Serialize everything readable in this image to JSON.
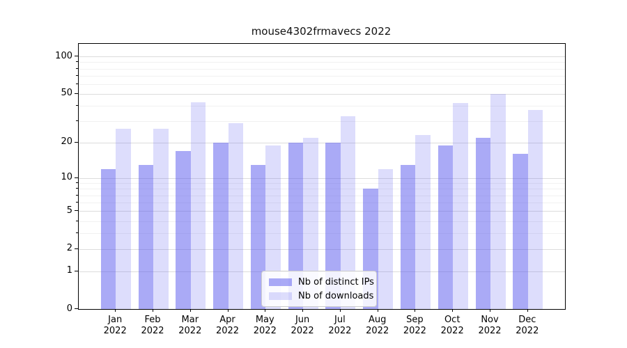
{
  "title": "mouse4302frmavecs 2022",
  "chart_data": {
    "type": "bar",
    "title": "mouse4302frmavecs 2022",
    "categories": [
      {
        "month": "Jan",
        "year": "2022"
      },
      {
        "month": "Feb",
        "year": "2022"
      },
      {
        "month": "Mar",
        "year": "2022"
      },
      {
        "month": "Apr",
        "year": "2022"
      },
      {
        "month": "May",
        "year": "2022"
      },
      {
        "month": "Jun",
        "year": "2022"
      },
      {
        "month": "Jul",
        "year": "2022"
      },
      {
        "month": "Aug",
        "year": "2022"
      },
      {
        "month": "Sep",
        "year": "2022"
      },
      {
        "month": "Oct",
        "year": "2022"
      },
      {
        "month": "Nov",
        "year": "2022"
      },
      {
        "month": "Dec",
        "year": "2022"
      }
    ],
    "series": [
      {
        "name": "Nb of distinct IPs",
        "color": "rgba(85,85,238,0.5)",
        "values": [
          12,
          13,
          17,
          20,
          13,
          20,
          20,
          8,
          13,
          19,
          22,
          16
        ]
      },
      {
        "name": "Nb of downloads",
        "color": "rgba(85,85,238,0.2)",
        "values": [
          26,
          26,
          43,
          29,
          19,
          22,
          33,
          12,
          23,
          42,
          50,
          37
        ]
      }
    ],
    "xlabel": "",
    "ylabel": "",
    "yscale": "log1p",
    "ylim": [
      0,
      127
    ],
    "yticks": [
      0,
      1,
      2,
      5,
      10,
      20,
      50,
      100
    ],
    "minor_gridlines": [
      3,
      4,
      6,
      7,
      8,
      9,
      30,
      40,
      60,
      70,
      80,
      90
    ],
    "grid": "horizontal",
    "legend_position": "lower center",
    "colors": {
      "bar_base": "#5555ee",
      "major_grid": "#dcdcdc",
      "minor_grid": "#f1f1f1",
      "axis": "#000000",
      "text": "#000000"
    }
  }
}
